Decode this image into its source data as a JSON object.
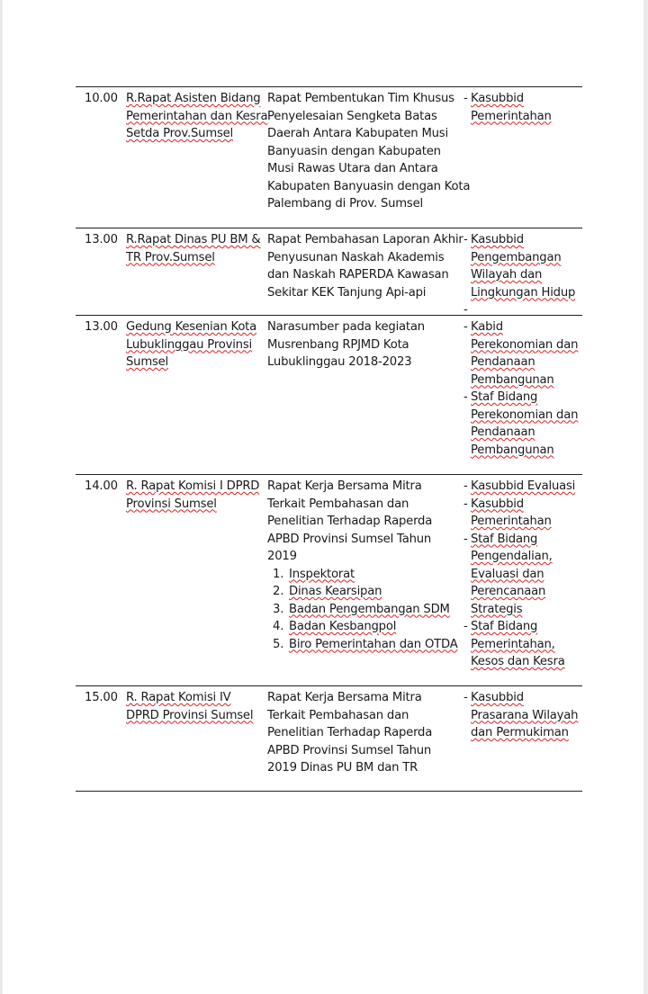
{
  "rows": [
    {
      "time": "10.00",
      "location": [
        "R.Rapat Asisten Bidang",
        "Pemerintahan dan Kesra",
        "Setda Prov.Sumsel"
      ],
      "agenda": [
        "Rapat Pembentukan Tim Khusus",
        "Penyelesaian Sengketa Batas",
        "Daerah Antara Kabupaten Musi",
        "Banyuasin dengan Kabupaten",
        "Musi Rawas Utara dan Antara",
        "Kabupaten Banyuasin dengan Kota",
        "Palembang di Prov. Sumsel"
      ],
      "agenda_list": [],
      "attendees": [
        {
          "lines": [
            "Kasubbid",
            "Pemerintahan"
          ]
        }
      ]
    },
    {
      "time": "13.00",
      "location": [
        "R.Rapat Dinas PU BM &",
        "TR Prov.Sumsel"
      ],
      "agenda": [
        "Rapat Pembahasan Laporan Akhir",
        "Penyusunan Naskah Akademis",
        "dan Naskah RAPERDA Kawasan",
        "Sekitar KEK Tanjung Api-api"
      ],
      "agenda_list": [],
      "attendees": [
        {
          "lines": [
            "Kasubbid",
            "Pengembangan",
            "Wilayah dan",
            "Lingkungan Hidup"
          ]
        },
        {
          "lines": [
            ""
          ]
        }
      ]
    },
    {
      "time": "13.00",
      "location": [
        "Gedung Kesenian Kota",
        "Lubuklinggau Provinsi",
        "Sumsel"
      ],
      "agenda": [
        "Narasumber pada kegiatan",
        "Musrenbang RPJMD Kota",
        "Lubuklinggau 2018-2023"
      ],
      "agenda_list": [],
      "attendees": [
        {
          "lines": [
            "Kabid",
            "Perekonomian dan",
            "Pendanaan",
            "Pembangunan"
          ]
        },
        {
          "lines": [
            "Staf Bidang",
            "Perekonomian dan",
            "Pendanaan",
            "Pembangunan"
          ]
        }
      ]
    },
    {
      "time": "14.00",
      "location": [
        "R. Rapat Komisi I DPRD",
        "Provinsi Sumsel"
      ],
      "agenda": [
        "Rapat Kerja Bersama Mitra",
        "Terkait Pembahasan dan",
        "Penelitian Terhadap Raperda",
        "APBD Provinsi Sumsel Tahun",
        "2019"
      ],
      "agenda_list": [
        "Inspektorat",
        "Dinas Kearsipan",
        "Badan Pengembangan SDM",
        "Badan Kesbangpol",
        "Biro Pemerintahan dan OTDA"
      ],
      "attendees": [
        {
          "lines": [
            "Kasubbid Evaluasi"
          ]
        },
        {
          "lines": [
            "Kasubbid",
            "Pemerintahan"
          ]
        },
        {
          "lines": [
            "Staf Bidang",
            "Pengendalian,",
            "Evaluasi dan",
            "Perencanaan",
            "Strategis"
          ]
        },
        {
          "lines": [
            "Staf Bidang",
            "Pemerintahan,",
            "Kesos dan Kesra"
          ]
        }
      ]
    },
    {
      "time": "15.00",
      "location": [
        "R. Rapat Komisi IV",
        "DPRD Provinsi Sumsel"
      ],
      "agenda": [
        "Rapat Kerja Bersama Mitra",
        "Terkait Pembahasan dan",
        "Penelitian Terhadap Raperda",
        "APBD Provinsi Sumsel Tahun",
        "2019 Dinas PU BM dan TR"
      ],
      "agenda_list": [],
      "attendees": [
        {
          "lines": [
            "Kasubbid",
            "Prasarana Wilayah",
            "dan Permukiman"
          ]
        }
      ]
    }
  ]
}
